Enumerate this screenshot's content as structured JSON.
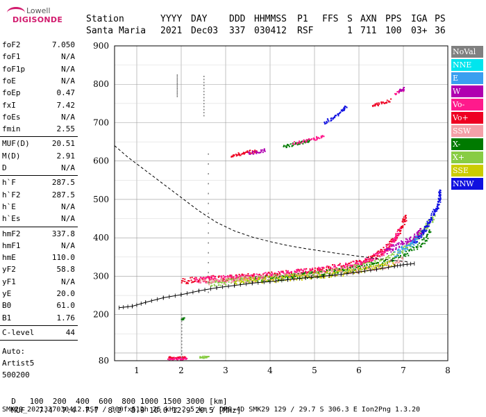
{
  "logo": {
    "line1": "Lowell",
    "line2": "DIGISONDE"
  },
  "header": {
    "row1": [
      "Station",
      "YYYY",
      "DAY",
      "DDD",
      "HHMMSS",
      "P1",
      "FFS",
      "S",
      "AXN",
      "PPS",
      "IGA",
      "PS"
    ],
    "row2": [
      "Santa Maria",
      "2021",
      "Dec03",
      "337",
      "030412",
      "RSF",
      "1",
      "711",
      "100",
      "03+",
      "36"
    ]
  },
  "params": {
    "group1": [
      [
        "foF2",
        "7.050"
      ],
      [
        "foF1",
        "N/A"
      ],
      [
        "foF1p",
        "N/A"
      ],
      [
        "foE",
        "N/A"
      ],
      [
        "foEp",
        "0.47"
      ],
      [
        "fxI",
        "7.42"
      ],
      [
        "foEs",
        "N/A"
      ],
      [
        "fmin",
        "2.55"
      ]
    ],
    "group2": [
      [
        "MUF(D)",
        "20.51"
      ],
      [
        "M(D)",
        "2.91"
      ],
      [
        "D",
        "N/A"
      ]
    ],
    "group3": [
      [
        "h`F",
        "287.5"
      ],
      [
        "h`F2",
        "287.5"
      ],
      [
        "h`E",
        "N/A"
      ],
      [
        "h`Es",
        "N/A"
      ]
    ],
    "group4": [
      [
        "hmF2",
        "337.8"
      ],
      [
        "hmF1",
        "N/A"
      ],
      [
        "hmE",
        "110.0"
      ],
      [
        "yF2",
        "58.8"
      ],
      [
        "yF1",
        "N/A"
      ],
      [
        "yE",
        "20.0"
      ],
      [
        "B0",
        "61.0"
      ],
      [
        "B1",
        "1.76"
      ]
    ],
    "group5": [
      [
        "C-level",
        "44"
      ]
    ],
    "auto": [
      "Auto:",
      "Artist5",
      "500200"
    ]
  },
  "legend": [
    {
      "label": "NoVal",
      "color": "#808080"
    },
    {
      "label": "NNE",
      "color": "#00e5ee"
    },
    {
      "label": "E",
      "color": "#3a9ff0"
    },
    {
      "label": "W",
      "color": "#b000b0"
    },
    {
      "label": "Vo-",
      "color": "#ff1a8c"
    },
    {
      "label": "Vo+",
      "color": "#ee0022"
    },
    {
      "label": "SSW",
      "color": "#f4a0a8"
    },
    {
      "label": "X-",
      "color": "#007a00"
    },
    {
      "label": "X+",
      "color": "#88cc44"
    },
    {
      "label": "SSE",
      "color": "#cccc00"
    },
    {
      "label": "NNW",
      "color": "#1010e0"
    }
  ],
  "chart_data": {
    "type": "scatter",
    "x_range": [
      0.5,
      8.0
    ],
    "y_range": [
      80,
      900
    ],
    "x_ticks": [
      "1",
      "2",
      "3",
      "4",
      "5",
      "6",
      "7",
      "8"
    ],
    "y_ticks": [
      "80",
      "200",
      "300",
      "400",
      "500",
      "600",
      "700",
      "800",
      "900"
    ],
    "grid": true,
    "dashed_curve": [
      [
        0.5,
        640
      ],
      [
        0.8,
        610
      ],
      [
        1.2,
        575
      ],
      [
        1.6,
        540
      ],
      [
        2.0,
        505
      ],
      [
        2.4,
        470
      ],
      [
        2.8,
        440
      ],
      [
        3.2,
        418
      ],
      [
        3.6,
        402
      ],
      [
        4.0,
        390
      ],
      [
        4.4,
        380
      ],
      [
        4.8,
        372
      ],
      [
        5.2,
        365
      ],
      [
        5.6,
        358
      ],
      [
        6.0,
        352
      ],
      [
        6.4,
        346
      ],
      [
        6.8,
        341
      ],
      [
        7.1,
        338
      ]
    ],
    "profile_curve": [
      [
        0.6,
        218
      ],
      [
        0.9,
        222
      ],
      [
        1.2,
        232
      ],
      [
        1.6,
        244
      ],
      [
        2.0,
        252
      ],
      [
        2.4,
        262
      ],
      [
        2.8,
        270
      ],
      [
        3.2,
        276
      ],
      [
        3.6,
        282
      ],
      [
        4.0,
        286
      ],
      [
        4.4,
        291
      ],
      [
        4.8,
        296
      ],
      [
        5.2,
        300
      ],
      [
        5.6,
        305
      ],
      [
        6.0,
        311
      ],
      [
        6.4,
        318
      ],
      [
        6.8,
        326
      ],
      [
        7.0,
        330
      ],
      [
        7.25,
        333
      ]
    ],
    "echo_traces": [
      {
        "color": "#ee0022",
        "points": [
          [
            2.0,
            289
          ],
          [
            2.4,
            292
          ],
          [
            2.8,
            296
          ],
          [
            3.2,
            298
          ],
          [
            3.6,
            301
          ],
          [
            4.0,
            305
          ],
          [
            4.4,
            309
          ],
          [
            4.8,
            314
          ],
          [
            5.2,
            320
          ],
          [
            5.6,
            327
          ],
          [
            6.0,
            337
          ],
          [
            6.3,
            350
          ],
          [
            6.6,
            375
          ],
          [
            6.8,
            400
          ],
          [
            6.95,
            430
          ],
          [
            7.05,
            460
          ]
        ]
      },
      {
        "color": "#ff1a8c",
        "points": [
          [
            2.3,
            291
          ],
          [
            2.7,
            294
          ],
          [
            3.1,
            297
          ],
          [
            3.5,
            300
          ],
          [
            3.9,
            304
          ],
          [
            4.3,
            308
          ],
          [
            4.7,
            313
          ],
          [
            5.1,
            318
          ],
          [
            5.5,
            325
          ],
          [
            5.9,
            333
          ],
          [
            6.2,
            344
          ],
          [
            6.5,
            362
          ],
          [
            6.75,
            390
          ],
          [
            6.9,
            420
          ]
        ]
      },
      {
        "color": "#88cc44",
        "points": [
          [
            2.6,
            283
          ],
          [
            3.0,
            287
          ],
          [
            3.4,
            291
          ],
          [
            3.8,
            295
          ],
          [
            4.2,
            299
          ],
          [
            4.6,
            303
          ],
          [
            5.0,
            308
          ],
          [
            5.4,
            314
          ],
          [
            5.8,
            321
          ],
          [
            6.2,
            330
          ],
          [
            6.6,
            345
          ],
          [
            7.0,
            370
          ],
          [
            7.3,
            400
          ],
          [
            7.5,
            430
          ],
          [
            7.7,
            460
          ]
        ]
      },
      {
        "color": "#007a00",
        "points": [
          [
            3.5,
            292
          ],
          [
            4.0,
            296
          ],
          [
            4.5,
            300
          ],
          [
            5.0,
            306
          ],
          [
            5.5,
            313
          ],
          [
            6.0,
            322
          ],
          [
            6.5,
            336
          ],
          [
            7.0,
            356
          ],
          [
            7.4,
            385
          ],
          [
            7.6,
            420
          ]
        ]
      },
      {
        "color": "#1010e0",
        "points": [
          [
            7.2,
            390
          ],
          [
            7.4,
            410
          ],
          [
            7.55,
            440
          ],
          [
            7.7,
            470
          ],
          [
            7.8,
            500
          ],
          [
            7.8,
            525
          ]
        ]
      },
      {
        "color": "#b000b0",
        "points": [
          [
            6.6,
            365
          ],
          [
            6.9,
            385
          ],
          [
            7.2,
            400
          ],
          [
            7.4,
            420
          ]
        ]
      },
      {
        "color": "#f4a0a8",
        "points": [
          [
            2.4,
            286
          ],
          [
            3.0,
            290
          ],
          [
            3.6,
            294
          ],
          [
            4.2,
            298
          ],
          [
            4.8,
            304
          ],
          [
            5.4,
            310
          ],
          [
            6.0,
            318
          ],
          [
            6.6,
            330
          ],
          [
            7.0,
            345
          ]
        ]
      },
      {
        "color": "#cccc00",
        "points": [
          [
            3.2,
            288
          ],
          [
            3.8,
            292
          ],
          [
            4.4,
            297
          ],
          [
            5.0,
            303
          ],
          [
            5.6,
            310
          ],
          [
            6.2,
            320
          ],
          [
            6.8,
            338
          ]
        ]
      },
      {
        "color": "#3a9ff0",
        "points": [
          [
            6.8,
            360
          ],
          [
            7.1,
            380
          ],
          [
            7.3,
            400
          ]
        ]
      }
    ],
    "upper_traces": [
      {
        "color": "#ee0022",
        "points": [
          [
            3.1,
            615
          ],
          [
            3.3,
            620
          ],
          [
            3.5,
            625
          ],
          [
            3.7,
            628
          ]
        ]
      },
      {
        "color": "#b000b0",
        "points": [
          [
            3.5,
            620
          ],
          [
            3.7,
            625
          ],
          [
            3.9,
            630
          ]
        ]
      },
      {
        "color": "#007a00",
        "points": [
          [
            4.3,
            640
          ],
          [
            4.5,
            645
          ],
          [
            4.7,
            650
          ],
          [
            4.9,
            655
          ]
        ]
      },
      {
        "color": "#ff1a8c",
        "points": [
          [
            4.5,
            648
          ],
          [
            4.8,
            655
          ],
          [
            5.0,
            660
          ],
          [
            5.2,
            668
          ]
        ]
      },
      {
        "color": "#1010e0",
        "points": [
          [
            5.2,
            700
          ],
          [
            5.4,
            715
          ],
          [
            5.6,
            730
          ],
          [
            5.7,
            745
          ]
        ]
      },
      {
        "color": "#ee0022",
        "points": [
          [
            6.3,
            745
          ],
          [
            6.5,
            752
          ],
          [
            6.7,
            760
          ]
        ]
      },
      {
        "color": "#ff1a8c",
        "points": [
          [
            6.8,
            778
          ],
          [
            7.0,
            788
          ]
        ]
      },
      {
        "color": "#b000b0",
        "points": [
          [
            6.9,
            785
          ],
          [
            7.0,
            790
          ]
        ]
      }
    ],
    "bottom_traces": [
      {
        "color": "#ee0022",
        "points": [
          [
            1.7,
            90
          ],
          [
            1.8,
            89
          ],
          [
            1.9,
            88
          ],
          [
            2.0,
            90
          ],
          [
            2.1,
            89
          ]
        ]
      },
      {
        "color": "#ff1a8c",
        "points": [
          [
            1.7,
            86
          ],
          [
            1.85,
            87
          ],
          [
            2.0,
            86
          ],
          [
            2.1,
            87
          ]
        ]
      },
      {
        "color": "#88cc44",
        "points": [
          [
            2.4,
            90
          ],
          [
            2.5,
            91
          ],
          [
            2.6,
            92
          ]
        ]
      },
      {
        "color": "#007a00",
        "points": [
          [
            2.0,
            190
          ],
          [
            2.05,
            192
          ]
        ]
      }
    ],
    "vertical_traces": [
      {
        "color": "#808080",
        "x": 1.9,
        "y": [
          770,
          830
        ]
      },
      {
        "color": "#808080",
        "x": 2.5,
        "y": [
          720,
          830
        ]
      },
      {
        "color": "#808080",
        "x": 2.0,
        "y": [
          90,
          210
        ]
      },
      {
        "color": "#808080",
        "x": 2.6,
        "y": [
          260,
          620
        ]
      }
    ]
  },
  "bottom_table": {
    "d_label": "D",
    "d_values": "100  200  400  600  800 1000 1500 3000 [km]",
    "muf_label": "MUF",
    "muf_values": "7.4  7.4  7.7  8.2  8.9 10.0 12.9 20.5 [MHz]"
  },
  "footer": "SMK29_2021337030412.RSF / 300fx512h 25 kHz 2.5 km / DPS-4D SMK29 129 / 29.7 S 306.3 E Ion2Png 1.3.20"
}
